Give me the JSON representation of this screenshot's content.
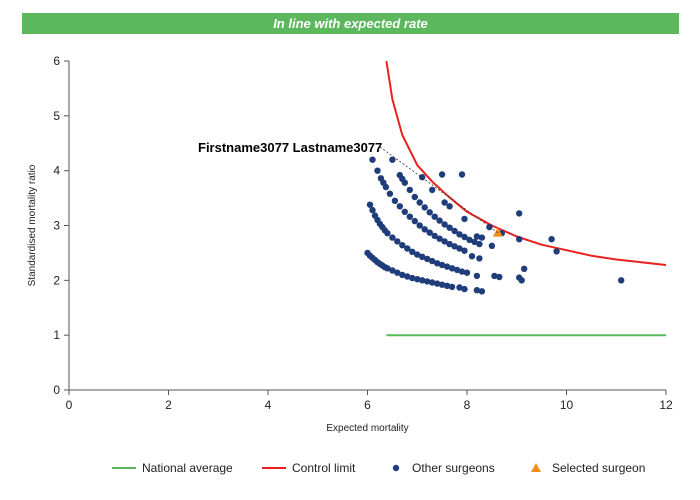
{
  "banner": {
    "text": "In line with expected rate",
    "color": "#5cb85c"
  },
  "chart_data": {
    "type": "scatter",
    "xlabel": "Expected mortality",
    "ylabel": "Standardised mortality ratio",
    "xlim": [
      0,
      12
    ],
    "ylim": [
      0,
      6
    ],
    "xticks": [
      "0",
      "2",
      "4",
      "6",
      "8",
      "10",
      "12"
    ],
    "yticks": [
      "0",
      "1",
      "2",
      "3",
      "4",
      "5",
      "6"
    ],
    "grid": false,
    "legend_position": "bottom",
    "annotation": {
      "text": "Firstname3077 Lastname3077",
      "x": 8.62,
      "y": 2.87
    },
    "series": [
      {
        "name": "National average",
        "kind": "line",
        "color": "#5cb85c",
        "points": [
          [
            6.38,
            1.0
          ],
          [
            12.0,
            1.0
          ]
        ]
      },
      {
        "name": "Control limit",
        "kind": "line",
        "color": "#e8211e",
        "points": [
          [
            6.38,
            6.0
          ],
          [
            6.5,
            5.3
          ],
          [
            6.7,
            4.65
          ],
          [
            7.0,
            4.1
          ],
          [
            7.3,
            3.8
          ],
          [
            7.6,
            3.55
          ],
          [
            8.0,
            3.25
          ],
          [
            8.5,
            3.0
          ],
          [
            9.0,
            2.8
          ],
          [
            9.5,
            2.65
          ],
          [
            10.0,
            2.55
          ],
          [
            10.5,
            2.45
          ],
          [
            11.0,
            2.38
          ],
          [
            11.5,
            2.33
          ],
          [
            12.0,
            2.28
          ]
        ]
      },
      {
        "name": "Other surgeons",
        "kind": "scatter",
        "color": "#1f3d7a",
        "points": [
          [
            6.0,
            2.5
          ],
          [
            6.05,
            2.45
          ],
          [
            6.1,
            2.41
          ],
          [
            6.15,
            2.37
          ],
          [
            6.2,
            2.33
          ],
          [
            6.25,
            2.3
          ],
          [
            6.3,
            2.27
          ],
          [
            6.35,
            2.24
          ],
          [
            6.4,
            2.22
          ],
          [
            6.5,
            2.18
          ],
          [
            6.6,
            2.14
          ],
          [
            6.7,
            2.1
          ],
          [
            6.8,
            2.07
          ],
          [
            6.9,
            2.04
          ],
          [
            7.0,
            2.02
          ],
          [
            7.1,
            2.0
          ],
          [
            7.2,
            1.98
          ],
          [
            7.3,
            1.96
          ],
          [
            7.4,
            1.94
          ],
          [
            7.5,
            1.92
          ],
          [
            7.6,
            1.9
          ],
          [
            7.7,
            1.88
          ],
          [
            7.85,
            1.87
          ],
          [
            7.95,
            1.84
          ],
          [
            8.2,
            1.82
          ],
          [
            8.3,
            1.8
          ],
          [
            6.05,
            3.38
          ],
          [
            6.1,
            3.28
          ],
          [
            6.15,
            3.18
          ],
          [
            6.2,
            3.1
          ],
          [
            6.25,
            3.03
          ],
          [
            6.3,
            2.97
          ],
          [
            6.35,
            2.91
          ],
          [
            6.4,
            2.86
          ],
          [
            6.5,
            2.78
          ],
          [
            6.6,
            2.71
          ],
          [
            6.7,
            2.64
          ],
          [
            6.8,
            2.58
          ],
          [
            6.9,
            2.52
          ],
          [
            7.0,
            2.47
          ],
          [
            7.1,
            2.43
          ],
          [
            7.2,
            2.39
          ],
          [
            7.3,
            2.35
          ],
          [
            7.4,
            2.31
          ],
          [
            7.5,
            2.28
          ],
          [
            7.6,
            2.25
          ],
          [
            7.7,
            2.22
          ],
          [
            7.8,
            2.19
          ],
          [
            7.9,
            2.16
          ],
          [
            8.0,
            2.14
          ],
          [
            8.2,
            2.08
          ],
          [
            8.55,
            2.08
          ],
          [
            8.65,
            2.06
          ],
          [
            6.1,
            4.2
          ],
          [
            6.2,
            4.0
          ],
          [
            6.27,
            3.86
          ],
          [
            6.32,
            3.78
          ],
          [
            6.37,
            3.7
          ],
          [
            6.45,
            3.58
          ],
          [
            6.55,
            3.45
          ],
          [
            6.65,
            3.35
          ],
          [
            6.75,
            3.25
          ],
          [
            6.85,
            3.16
          ],
          [
            6.95,
            3.08
          ],
          [
            7.05,
            3.0
          ],
          [
            7.15,
            2.93
          ],
          [
            7.25,
            2.87
          ],
          [
            7.35,
            2.81
          ],
          [
            7.45,
            2.76
          ],
          [
            7.55,
            2.71
          ],
          [
            7.65,
            2.66
          ],
          [
            7.75,
            2.62
          ],
          [
            7.85,
            2.58
          ],
          [
            7.95,
            2.54
          ],
          [
            8.1,
            2.44
          ],
          [
            8.25,
            2.4
          ],
          [
            6.5,
            4.2
          ],
          [
            6.65,
            3.92
          ],
          [
            6.7,
            3.85
          ],
          [
            6.75,
            3.78
          ],
          [
            6.85,
            3.65
          ],
          [
            6.95,
            3.52
          ],
          [
            7.05,
            3.42
          ],
          [
            7.15,
            3.33
          ],
          [
            7.25,
            3.24
          ],
          [
            7.35,
            3.16
          ],
          [
            7.45,
            3.09
          ],
          [
            7.55,
            3.02
          ],
          [
            7.65,
            2.96
          ],
          [
            7.75,
            2.9
          ],
          [
            7.85,
            2.84
          ],
          [
            7.95,
            2.79
          ],
          [
            8.05,
            2.74
          ],
          [
            8.15,
            2.7
          ],
          [
            8.25,
            2.66
          ],
          [
            8.5,
            2.63
          ],
          [
            7.1,
            3.88
          ],
          [
            7.3,
            3.65
          ],
          [
            7.5,
            3.93
          ],
          [
            7.55,
            3.42
          ],
          [
            7.65,
            3.35
          ],
          [
            7.9,
            3.93
          ],
          [
            7.95,
            3.12
          ],
          [
            8.2,
            2.8
          ],
          [
            8.3,
            2.78
          ],
          [
            8.45,
            2.97
          ],
          [
            8.7,
            2.86
          ],
          [
            9.05,
            2.75
          ],
          [
            9.05,
            3.22
          ],
          [
            9.7,
            2.75
          ],
          [
            9.8,
            2.53
          ],
          [
            9.05,
            2.05
          ],
          [
            9.1,
            2.0
          ],
          [
            9.15,
            2.21
          ],
          [
            11.1,
            2.0
          ]
        ]
      },
      {
        "name": "Selected surgeon",
        "kind": "scatter",
        "color": "#f28e1c",
        "marker": "triangle",
        "points": [
          [
            8.62,
            2.87
          ]
        ]
      }
    ]
  }
}
